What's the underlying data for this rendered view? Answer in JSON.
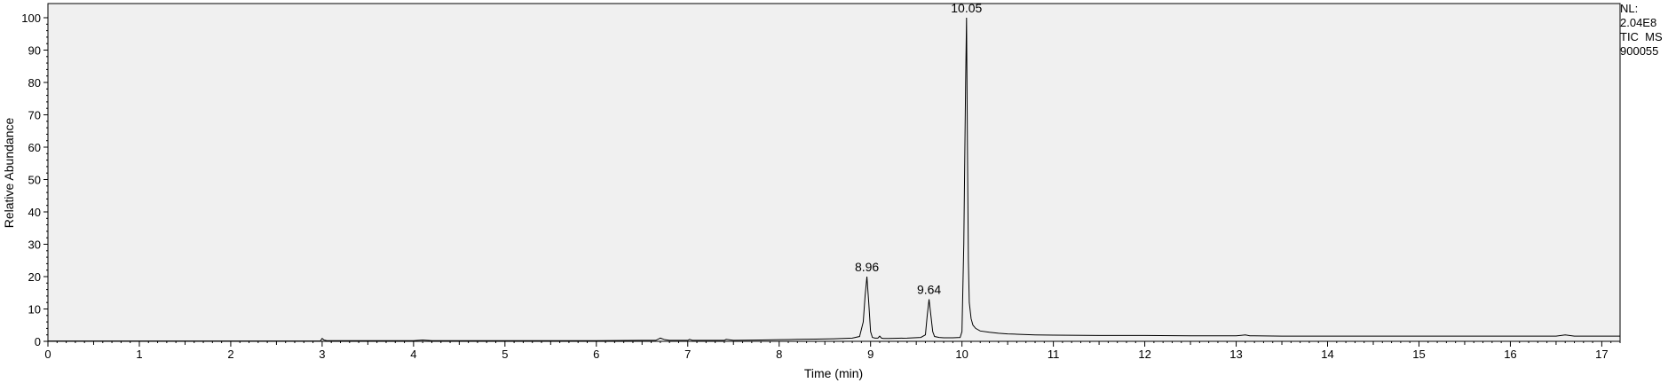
{
  "info": {
    "nl_label": "NL:",
    "nl_value": "2.04E8",
    "trace": "TIC  MS",
    "file": "900055"
  },
  "chart_data": {
    "type": "line",
    "xlabel": "Time (min)",
    "ylabel": "Relative Abundance",
    "xlim": [
      0,
      17.2
    ],
    "ylim": [
      0,
      100
    ],
    "x_ticks": [
      0,
      1,
      2,
      3,
      4,
      5,
      6,
      7,
      8,
      9,
      10,
      11,
      12,
      13,
      14,
      15,
      16,
      17
    ],
    "y_ticks": [
      0,
      10,
      20,
      30,
      40,
      50,
      60,
      70,
      80,
      90,
      100
    ],
    "background": "#f0f0f0",
    "line_color": "#000000",
    "peak_labels": [
      {
        "x": 8.96,
        "y": 20,
        "label": "8.96"
      },
      {
        "x": 9.64,
        "y": 13,
        "label": "9.64"
      },
      {
        "x": 10.05,
        "y": 100,
        "label": "10.05"
      }
    ],
    "series": [
      {
        "x": [
          0,
          0.5,
          1,
          1.5,
          2,
          2.5,
          2.98,
          3.0,
          3.02,
          3.05,
          3.1,
          3.5,
          4,
          4.1,
          4.2,
          4.5,
          5,
          5.5,
          6,
          6.5,
          6.65,
          6.7,
          6.75,
          6.8,
          7.0,
          7.02,
          7.05,
          7.2,
          7.4,
          7.42,
          7.5,
          7.8,
          8.0,
          8.2,
          8.4,
          8.6,
          8.7,
          8.8,
          8.88,
          8.92,
          8.94,
          8.96,
          8.98,
          9.0,
          9.02,
          9.05,
          9.08,
          9.1,
          9.12,
          9.14,
          9.2,
          9.4,
          9.55,
          9.6,
          9.62,
          9.64,
          9.66,
          9.68,
          9.7,
          9.75,
          9.8,
          9.9,
          9.98,
          10.0,
          10.02,
          10.04,
          10.05,
          10.06,
          10.07,
          10.08,
          10.1,
          10.12,
          10.15,
          10.2,
          10.3,
          10.4,
          10.5,
          10.6,
          10.8,
          11,
          11.5,
          12,
          12.5,
          13.0,
          13.1,
          13.15,
          13.2,
          13.5,
          14,
          14.5,
          15,
          15.5,
          16,
          16.5,
          16.6,
          16.7,
          17,
          17.2
        ],
        "y": [
          0.1,
          0.1,
          0.1,
          0.1,
          0.1,
          0.1,
          0.1,
          0.9,
          0.4,
          0.2,
          0.2,
          0.2,
          0.2,
          0.4,
          0.2,
          0.2,
          0.2,
          0.2,
          0.2,
          0.3,
          0.3,
          1.0,
          0.5,
          0.3,
          0.3,
          0.6,
          0.3,
          0.3,
          0.3,
          0.6,
          0.3,
          0.4,
          0.5,
          0.6,
          0.7,
          0.8,
          0.9,
          1.0,
          1.5,
          6,
          14,
          20,
          12,
          3,
          1.2,
          1.0,
          1.0,
          1.6,
          1.0,
          0.9,
          0.9,
          1.0,
          1.2,
          2,
          8,
          13,
          8,
          3,
          1.5,
          1.2,
          1.1,
          1.1,
          1.2,
          3,
          30,
          80,
          100,
          60,
          25,
          12,
          7,
          5,
          4,
          3.2,
          2.8,
          2.5,
          2.3,
          2.2,
          2.0,
          1.9,
          1.8,
          1.8,
          1.7,
          1.7,
          2.0,
          1.7,
          1.7,
          1.6,
          1.6,
          1.6,
          1.6,
          1.6,
          1.6,
          1.6,
          2.0,
          1.6,
          1.6,
          1.6
        ]
      }
    ]
  }
}
